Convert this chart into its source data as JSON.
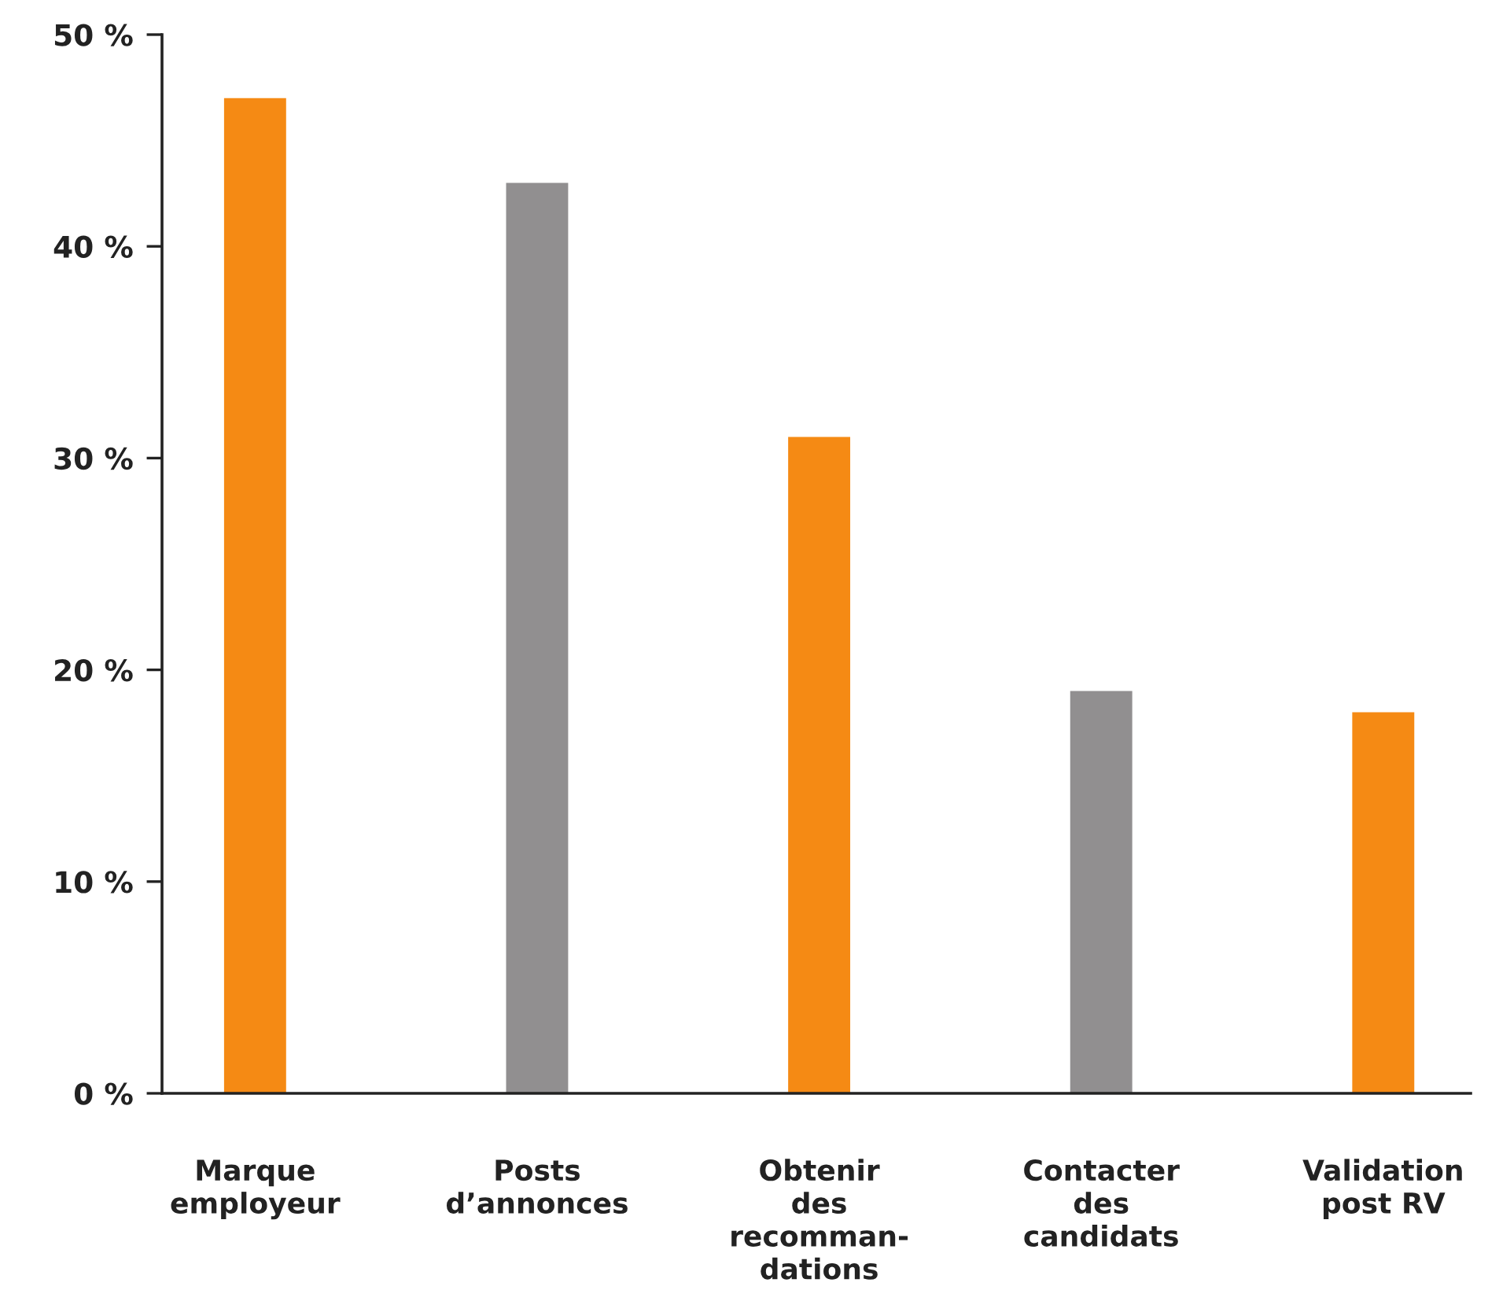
{
  "chart_data": {
    "type": "bar",
    "categories": [
      "Marque\nemployeur",
      "Posts\nd’annonces",
      "Obtenir\ndes\nrecomman-\ndations",
      "Contacter\ndes\ncandidats",
      "Validation\npost RV"
    ],
    "values": [
      47,
      43,
      31,
      19,
      18
    ],
    "colors": [
      "#f58a14",
      "#918f90",
      "#f58a14",
      "#918f90",
      "#f58a14"
    ],
    "ylim": [
      0,
      50
    ],
    "yticks": [
      {
        "value": 0,
        "label": "0 %"
      },
      {
        "value": 10,
        "label": "10 %"
      },
      {
        "value": 20,
        "label": "20 %"
      },
      {
        "value": 30,
        "label": "30 %"
      },
      {
        "value": 40,
        "label": "40 %"
      },
      {
        "value": 50,
        "label": "50 %"
      }
    ],
    "grid": false,
    "legend": false
  }
}
